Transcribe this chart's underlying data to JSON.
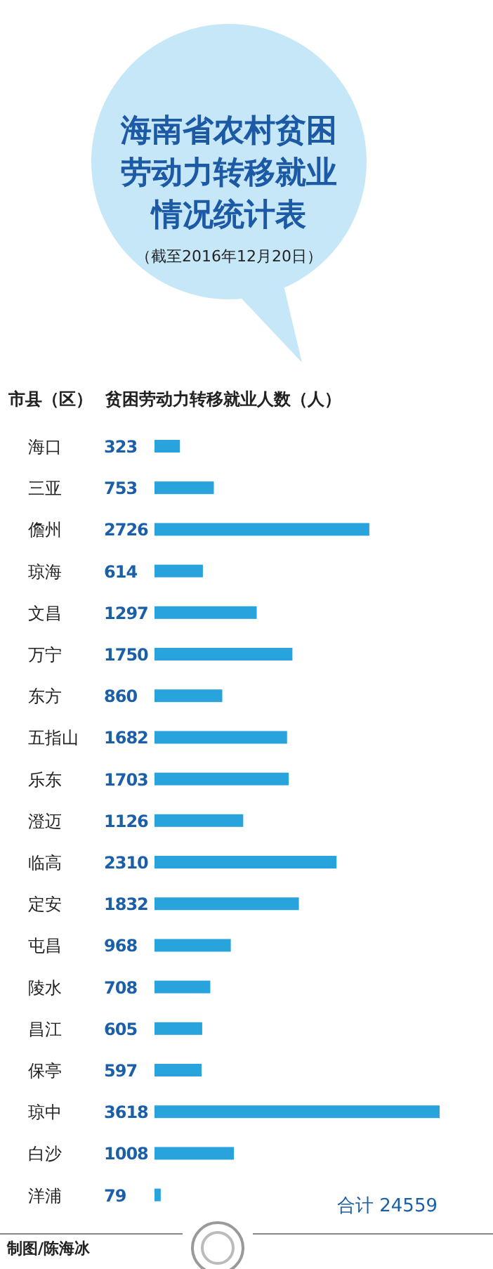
{
  "chart_data": {
    "type": "bar",
    "orientation": "horizontal",
    "title": "海南省农村贫困劳动力转移就业情况统计表",
    "subtitle": "（截至2016年12月20日）",
    "ylabel": "市县（区）",
    "xlabel": "贫困劳动力转移就业人数（人）",
    "categories": [
      "海口",
      "三亚",
      "儋州",
      "琼海",
      "文昌",
      "万宁",
      "东方",
      "五指山",
      "乐东",
      "澄迈",
      "临高",
      "定安",
      "屯昌",
      "陵水",
      "昌江",
      "保亭",
      "琼中",
      "白沙",
      "洋浦"
    ],
    "values": [
      323,
      753,
      2726,
      614,
      1297,
      1750,
      860,
      1682,
      1703,
      1126,
      2310,
      1832,
      968,
      708,
      605,
      597,
      3618,
      1008,
      79
    ],
    "color": "#29a3db",
    "data_labels": true,
    "annotations": [
      "合计 24559",
      "制图/陈海冰"
    ]
  }
}
